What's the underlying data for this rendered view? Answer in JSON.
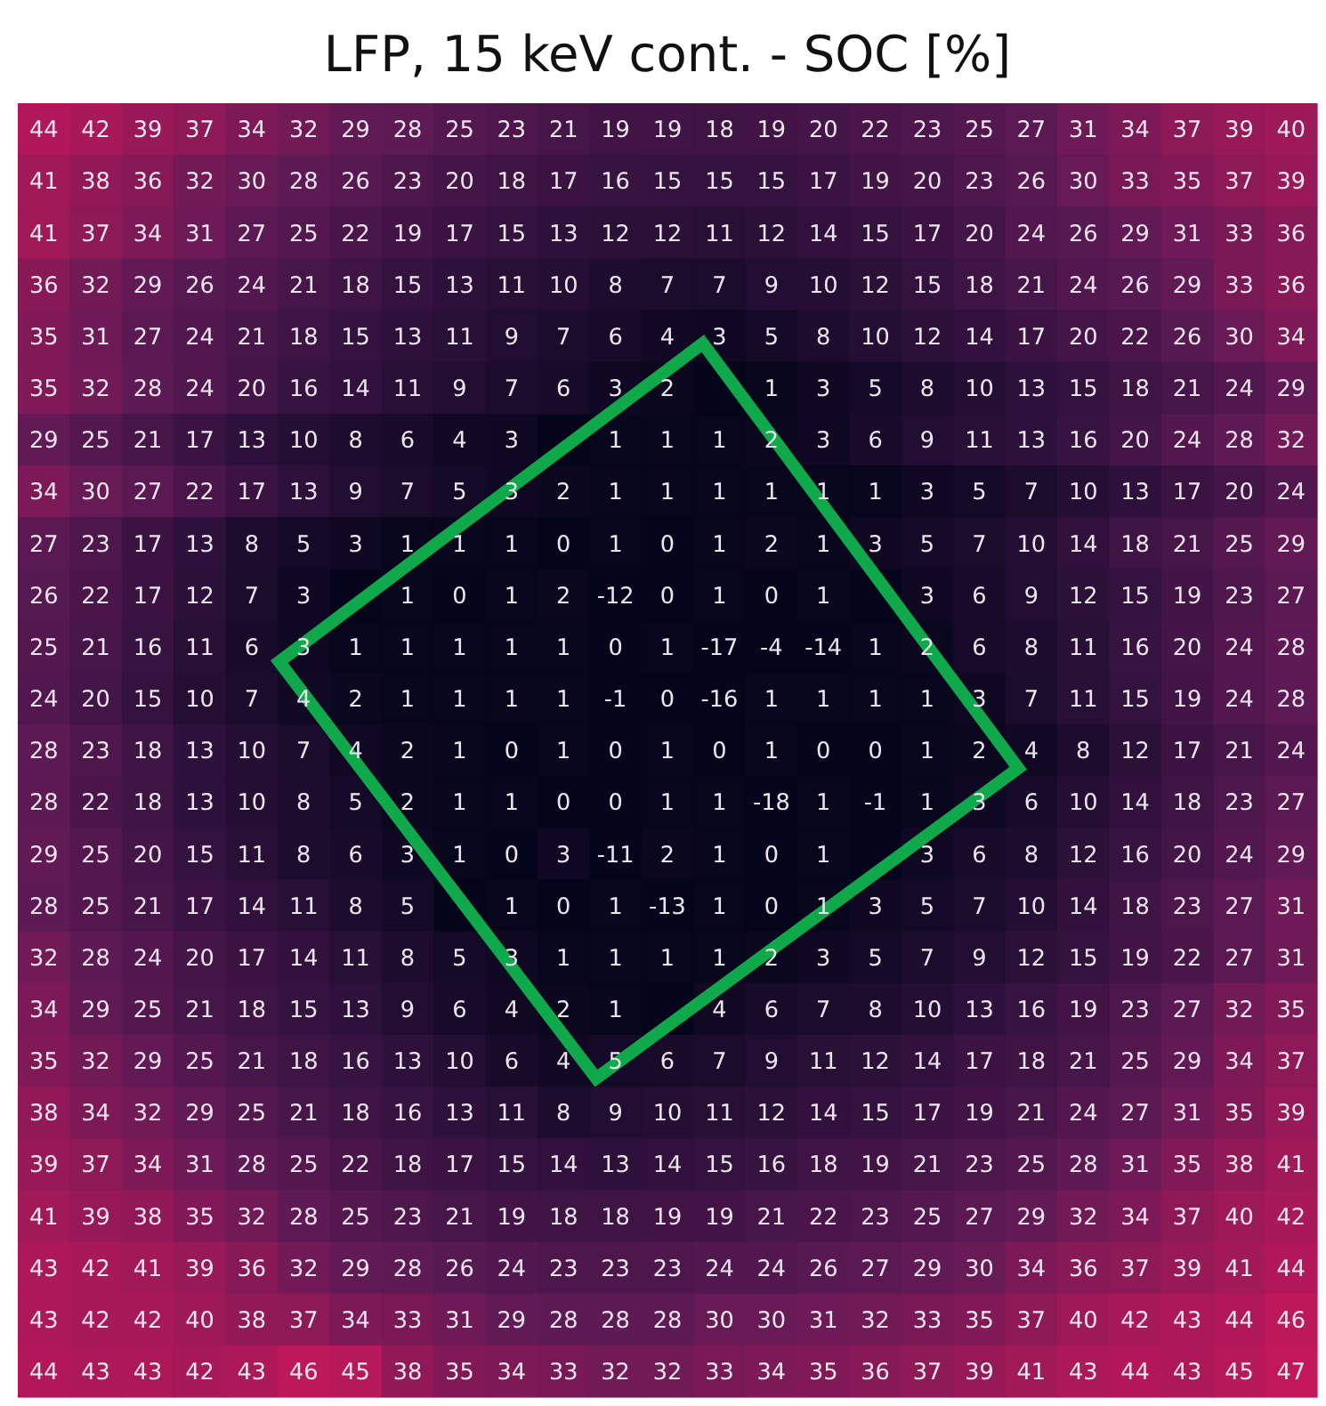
{
  "chart_data": {
    "type": "heatmap",
    "title": "LFP, 15 keV cont. - SOC [%]",
    "categories": [
      null,
      null,
      null,
      null,
      null,
      null,
      null,
      null,
      null,
      null,
      null,
      null,
      null,
      null,
      null,
      null,
      null,
      null,
      null,
      null,
      null,
      null,
      null,
      null,
      null
    ],
    "y_categories": [
      null,
      null,
      null,
      null,
      null,
      null,
      null,
      null,
      null,
      null,
      null,
      null,
      null,
      null,
      null,
      null,
      null,
      null,
      null,
      null,
      null,
      null,
      null,
      null,
      null
    ],
    "data_labels": true,
    "cells": [
      [
        44,
        42,
        39,
        37,
        34,
        32,
        29,
        28,
        25,
        23,
        21,
        19,
        19,
        18,
        19,
        20,
        22,
        23,
        25,
        27,
        31,
        34,
        37,
        39,
        40
      ],
      [
        41,
        38,
        36,
        32,
        30,
        28,
        26,
        23,
        20,
        18,
        17,
        16,
        15,
        15,
        15,
        17,
        19,
        20,
        23,
        26,
        30,
        33,
        35,
        37,
        39
      ],
      [
        41,
        37,
        34,
        31,
        27,
        25,
        22,
        19,
        17,
        15,
        13,
        12,
        12,
        11,
        12,
        14,
        15,
        17,
        20,
        24,
        26,
        29,
        31,
        33,
        36
      ],
      [
        36,
        32,
        29,
        26,
        24,
        21,
        18,
        15,
        13,
        11,
        10,
        8,
        7,
        7,
        9,
        10,
        12,
        15,
        18,
        21,
        24,
        26,
        29,
        33,
        36
      ],
      [
        35,
        31,
        27,
        24,
        21,
        18,
        15,
        13,
        11,
        9,
        7,
        6,
        4,
        3,
        5,
        8,
        10,
        12,
        14,
        17,
        20,
        22,
        26,
        30,
        34
      ],
      [
        35,
        32,
        28,
        24,
        20,
        16,
        14,
        11,
        9,
        7,
        6,
        3,
        2,
        null,
        1,
        3,
        5,
        8,
        10,
        13,
        15,
        18,
        21,
        24,
        29
      ],
      [
        29,
        25,
        21,
        17,
        13,
        10,
        8,
        6,
        4,
        3,
        null,
        1,
        1,
        1,
        2,
        3,
        6,
        9,
        11,
        13,
        16,
        20,
        24,
        28,
        32
      ],
      [
        34,
        30,
        27,
        22,
        17,
        13,
        9,
        7,
        5,
        3,
        2,
        1,
        1,
        1,
        1,
        1,
        1,
        3,
        5,
        7,
        10,
        13,
        17,
        20,
        24
      ],
      [
        27,
        23,
        17,
        13,
        8,
        5,
        3,
        1,
        1,
        1,
        0,
        1,
        0,
        1,
        2,
        1,
        3,
        5,
        7,
        10,
        14,
        18,
        21,
        25,
        29
      ],
      [
        26,
        22,
        17,
        12,
        7,
        3,
        null,
        1,
        0,
        1,
        2,
        -12,
        0,
        1,
        0,
        1,
        null,
        3,
        6,
        9,
        12,
        15,
        19,
        23,
        27
      ],
      [
        25,
        21,
        16,
        11,
        6,
        3,
        1,
        1,
        1,
        1,
        1,
        0,
        1,
        -17,
        -4,
        -14,
        1,
        2,
        6,
        8,
        11,
        16,
        20,
        24,
        28
      ],
      [
        24,
        20,
        15,
        10,
        7,
        4,
        2,
        1,
        1,
        1,
        1,
        -1,
        0,
        -16,
        1,
        1,
        1,
        1,
        3,
        7,
        11,
        15,
        19,
        24,
        28
      ],
      [
        28,
        23,
        18,
        13,
        10,
        7,
        4,
        2,
        1,
        0,
        1,
        0,
        1,
        0,
        1,
        0,
        0,
        1,
        2,
        4,
        8,
        12,
        17,
        21,
        24
      ],
      [
        28,
        22,
        18,
        13,
        10,
        8,
        5,
        2,
        1,
        1,
        0,
        0,
        1,
        1,
        -18,
        1,
        -1,
        1,
        3,
        6,
        10,
        14,
        18,
        23,
        27
      ],
      [
        29,
        25,
        20,
        15,
        11,
        8,
        6,
        3,
        1,
        0,
        3,
        -11,
        2,
        1,
        0,
        1,
        null,
        3,
        6,
        8,
        12,
        16,
        20,
        24,
        29
      ],
      [
        28,
        25,
        21,
        17,
        14,
        11,
        8,
        5,
        null,
        1,
        0,
        1,
        -13,
        1,
        0,
        1,
        3,
        5,
        7,
        10,
        14,
        18,
        23,
        27,
        31
      ],
      [
        32,
        28,
        24,
        20,
        17,
        14,
        11,
        8,
        5,
        3,
        1,
        1,
        1,
        1,
        2,
        3,
        5,
        7,
        9,
        12,
        15,
        19,
        22,
        27,
        31
      ],
      [
        34,
        29,
        25,
        21,
        18,
        15,
        13,
        9,
        6,
        4,
        2,
        1,
        null,
        4,
        6,
        7,
        8,
        10,
        13,
        16,
        19,
        23,
        27,
        32,
        35
      ],
      [
        35,
        32,
        29,
        25,
        21,
        18,
        16,
        13,
        10,
        6,
        4,
        5,
        6,
        7,
        9,
        11,
        12,
        14,
        17,
        18,
        21,
        25,
        29,
        34,
        37
      ],
      [
        38,
        34,
        32,
        29,
        25,
        21,
        18,
        16,
        13,
        11,
        8,
        9,
        10,
        11,
        12,
        14,
        15,
        17,
        19,
        21,
        24,
        27,
        31,
        35,
        39
      ],
      [
        39,
        37,
        34,
        31,
        28,
        25,
        22,
        18,
        17,
        15,
        14,
        13,
        14,
        15,
        16,
        18,
        19,
        21,
        23,
        25,
        28,
        31,
        35,
        38,
        41
      ],
      [
        41,
        39,
        38,
        35,
        32,
        28,
        25,
        23,
        21,
        19,
        18,
        18,
        19,
        19,
        21,
        22,
        23,
        25,
        27,
        29,
        32,
        34,
        37,
        40,
        42
      ],
      [
        43,
        42,
        41,
        39,
        36,
        32,
        29,
        28,
        26,
        24,
        23,
        23,
        23,
        24,
        24,
        26,
        27,
        29,
        30,
        34,
        36,
        37,
        39,
        41,
        44
      ],
      [
        43,
        42,
        42,
        40,
        38,
        37,
        34,
        33,
        31,
        29,
        28,
        28,
        28,
        30,
        30,
        31,
        32,
        33,
        35,
        37,
        40,
        42,
        43,
        44,
        46
      ],
      [
        44,
        43,
        43,
        42,
        43,
        46,
        45,
        38,
        35,
        34,
        33,
        32,
        32,
        33,
        34,
        35,
        36,
        37,
        39,
        41,
        43,
        44,
        43,
        45,
        47
      ]
    ]
  }
}
